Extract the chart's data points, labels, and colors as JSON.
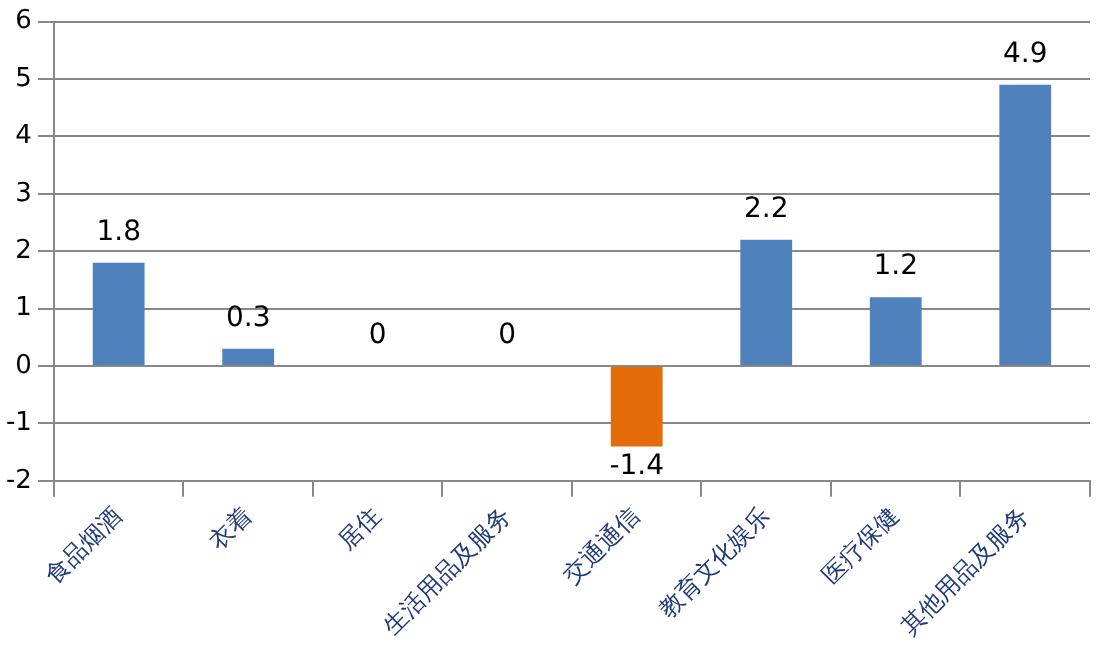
{
  "chart_data": {
    "type": "bar",
    "categories": [
      "食品烟酒",
      "衣着",
      "居住",
      "生活用品及服务",
      "交通通信",
      "教育文化娱乐",
      "医疗保健",
      "其他用品及服务"
    ],
    "values": [
      1.8,
      0.3,
      0,
      0,
      -1.4,
      2.2,
      1.2,
      4.9
    ],
    "colors": [
      "#4f81bd",
      "#4f81bd",
      "#4f81bd",
      "#4f81bd",
      "#e36c09",
      "#4f81bd",
      "#4f81bd",
      "#4f81bd"
    ],
    "ylim": [
      -2,
      6
    ],
    "yticks": [
      -2,
      -1,
      0,
      1,
      2,
      3,
      4,
      5,
      6
    ],
    "grid": "y",
    "data_labels": true,
    "legend": false
  }
}
